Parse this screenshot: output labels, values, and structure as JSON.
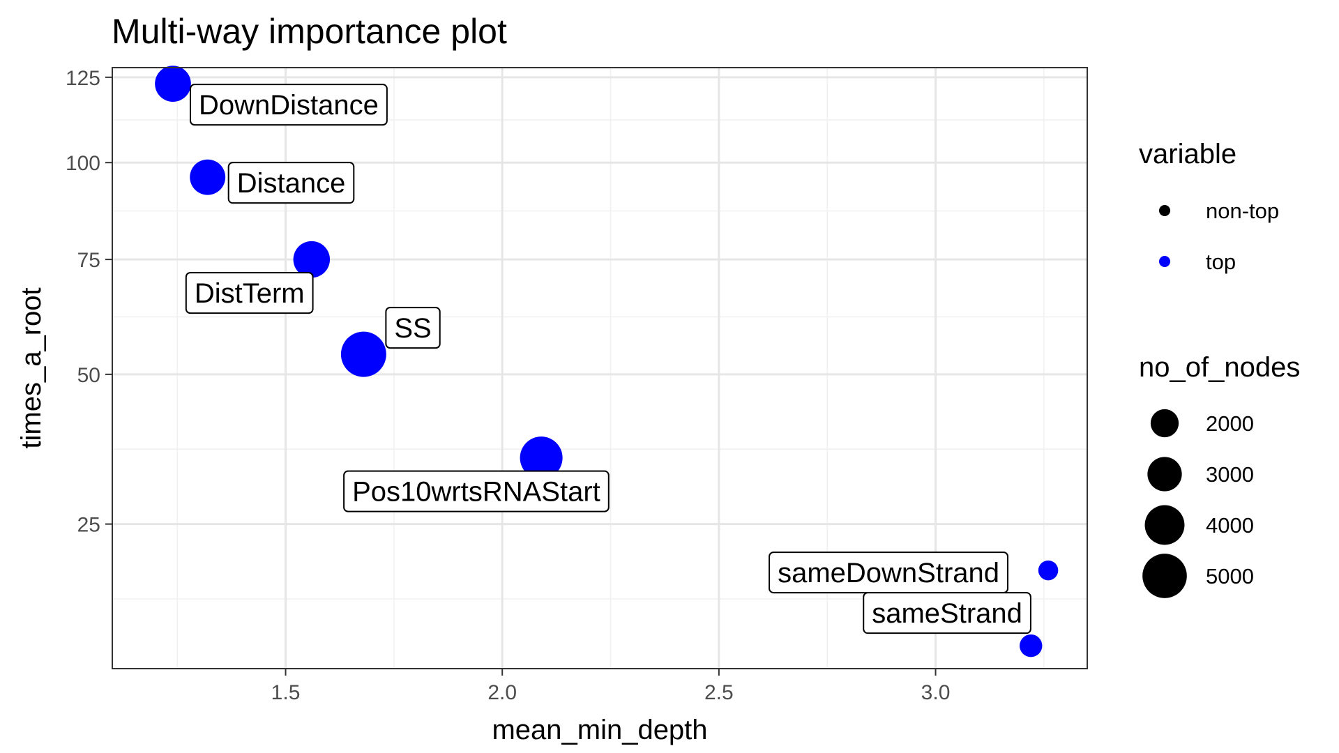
{
  "chart_data": {
    "type": "scatter",
    "title": "Multi-way importance plot",
    "xlabel": "mean_min_depth",
    "ylabel": "times_a_root",
    "x_ticks": [
      "1.5",
      "2.0",
      "2.5",
      "3.0"
    ],
    "y_ticks": [
      "25",
      "50",
      "75",
      "100",
      "125"
    ],
    "xlim": [
      1.1,
      3.35
    ],
    "ylim": [
      9,
      128
    ],
    "y_scale": "sqrt",
    "grid": true,
    "legend_position": "right",
    "points": [
      {
        "label": "DownDistance",
        "x": 1.24,
        "y": 123,
        "variable": "top",
        "no_of_nodes": 3300
      },
      {
        "label": "Distance",
        "x": 1.32,
        "y": 96,
        "variable": "top",
        "no_of_nodes": 3200
      },
      {
        "label": "DistTerm",
        "x": 1.56,
        "y": 75,
        "variable": "top",
        "no_of_nodes": 3400
      },
      {
        "label": "SS",
        "x": 1.68,
        "y": 54,
        "variable": "top",
        "no_of_nodes": 5200
      },
      {
        "label": "Pos10wrtsRNAStart",
        "x": 2.09,
        "y": 35,
        "variable": "top",
        "no_of_nodes": 4600
      },
      {
        "label": "sameDownStrand",
        "x": 3.26,
        "y": 19,
        "variable": "top",
        "no_of_nodes": 1000
      },
      {
        "label": "sameStrand",
        "x": 3.22,
        "y": 11,
        "variable": "top",
        "no_of_nodes": 1300
      }
    ],
    "legend_variable": {
      "title": "variable",
      "items": [
        {
          "label": "non-top",
          "color": "#000000"
        },
        {
          "label": "top",
          "color": "#0000ff"
        }
      ]
    },
    "legend_size": {
      "title": "no_of_nodes",
      "items": [
        {
          "label": "2000",
          "value": 2000
        },
        {
          "label": "3000",
          "value": 3000
        },
        {
          "label": "4000",
          "value": 4000
        },
        {
          "label": "5000",
          "value": 5000
        }
      ]
    }
  }
}
